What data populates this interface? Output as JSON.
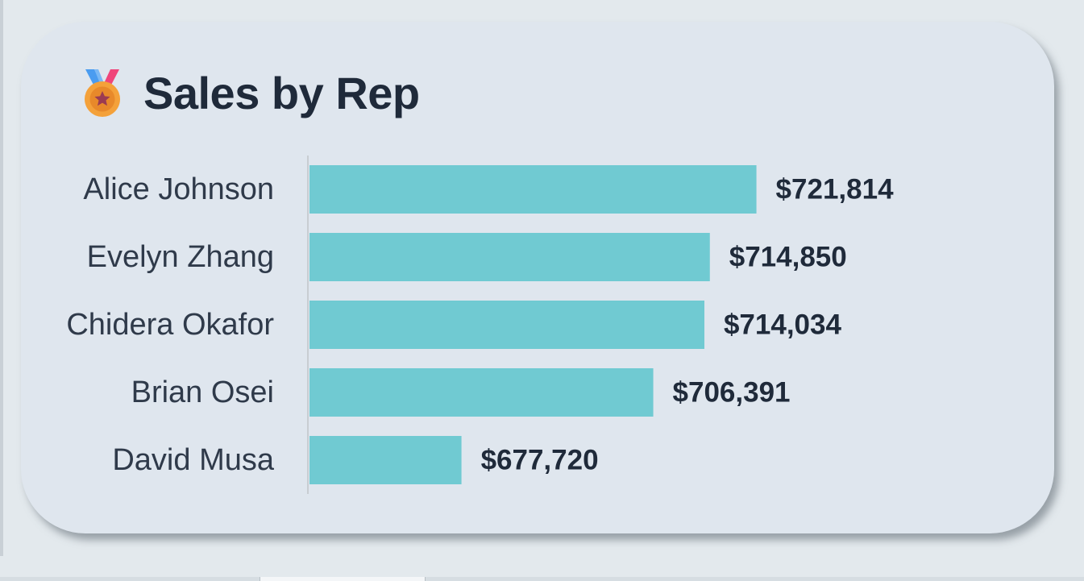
{
  "title": "Sales by Rep",
  "icon": "medal-icon",
  "colors": {
    "bar": "#70cad2",
    "text": "#1f2a3a",
    "label": "#2f3a4a",
    "card": "#dfe6ee"
  },
  "chart_data": {
    "type": "bar",
    "orientation": "horizontal",
    "title": "Sales by Rep",
    "categories": [
      "Alice Johnson",
      "Evelyn Zhang",
      "Chidera Okafor",
      "Brian Osei",
      "David Musa"
    ],
    "values": [
      721814,
      714850,
      714034,
      706391,
      677720
    ],
    "value_labels": [
      "$721,814",
      "$714,850",
      "$714,034",
      "$706,391",
      "$677,720"
    ],
    "xlim": [
      655000,
      735000
    ],
    "grid": false,
    "legend": "none"
  }
}
